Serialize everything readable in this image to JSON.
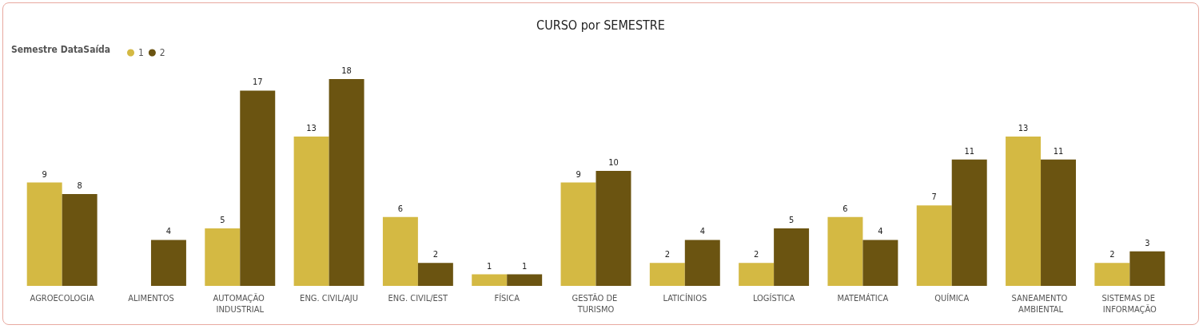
{
  "chart_data": {
    "type": "bar",
    "title": "CURSO por SEMESTRE",
    "legend_title": "Semestre DataSaída",
    "legend": "top left",
    "data_labels": true,
    "categories": [
      "AGROECOLOGIA",
      "ALIMENTOS",
      "AUTOMAÇÃO INDUSTRIAL",
      "ENG. CIVIL/AJU",
      "ENG. CIVIL/EST",
      "FÍSICA",
      "GESTÃO DE TURISMO",
      "LATICÍNIOS",
      "LOGÍSTICA",
      "MATEMÁTICA",
      "QUÍMICA",
      "SANEAMENTO AMBIENTAL",
      "SISTEMAS DE INFORMAÇÃO"
    ],
    "series": [
      {
        "name": "1",
        "color": "#d4b943",
        "values": [
          9,
          null,
          5,
          13,
          6,
          1,
          9,
          2,
          2,
          6,
          7,
          13,
          2
        ]
      },
      {
        "name": "2",
        "color": "#6b5411",
        "values": [
          8,
          4,
          17,
          18,
          2,
          1,
          10,
          4,
          5,
          4,
          11,
          11,
          3
        ]
      }
    ]
  }
}
